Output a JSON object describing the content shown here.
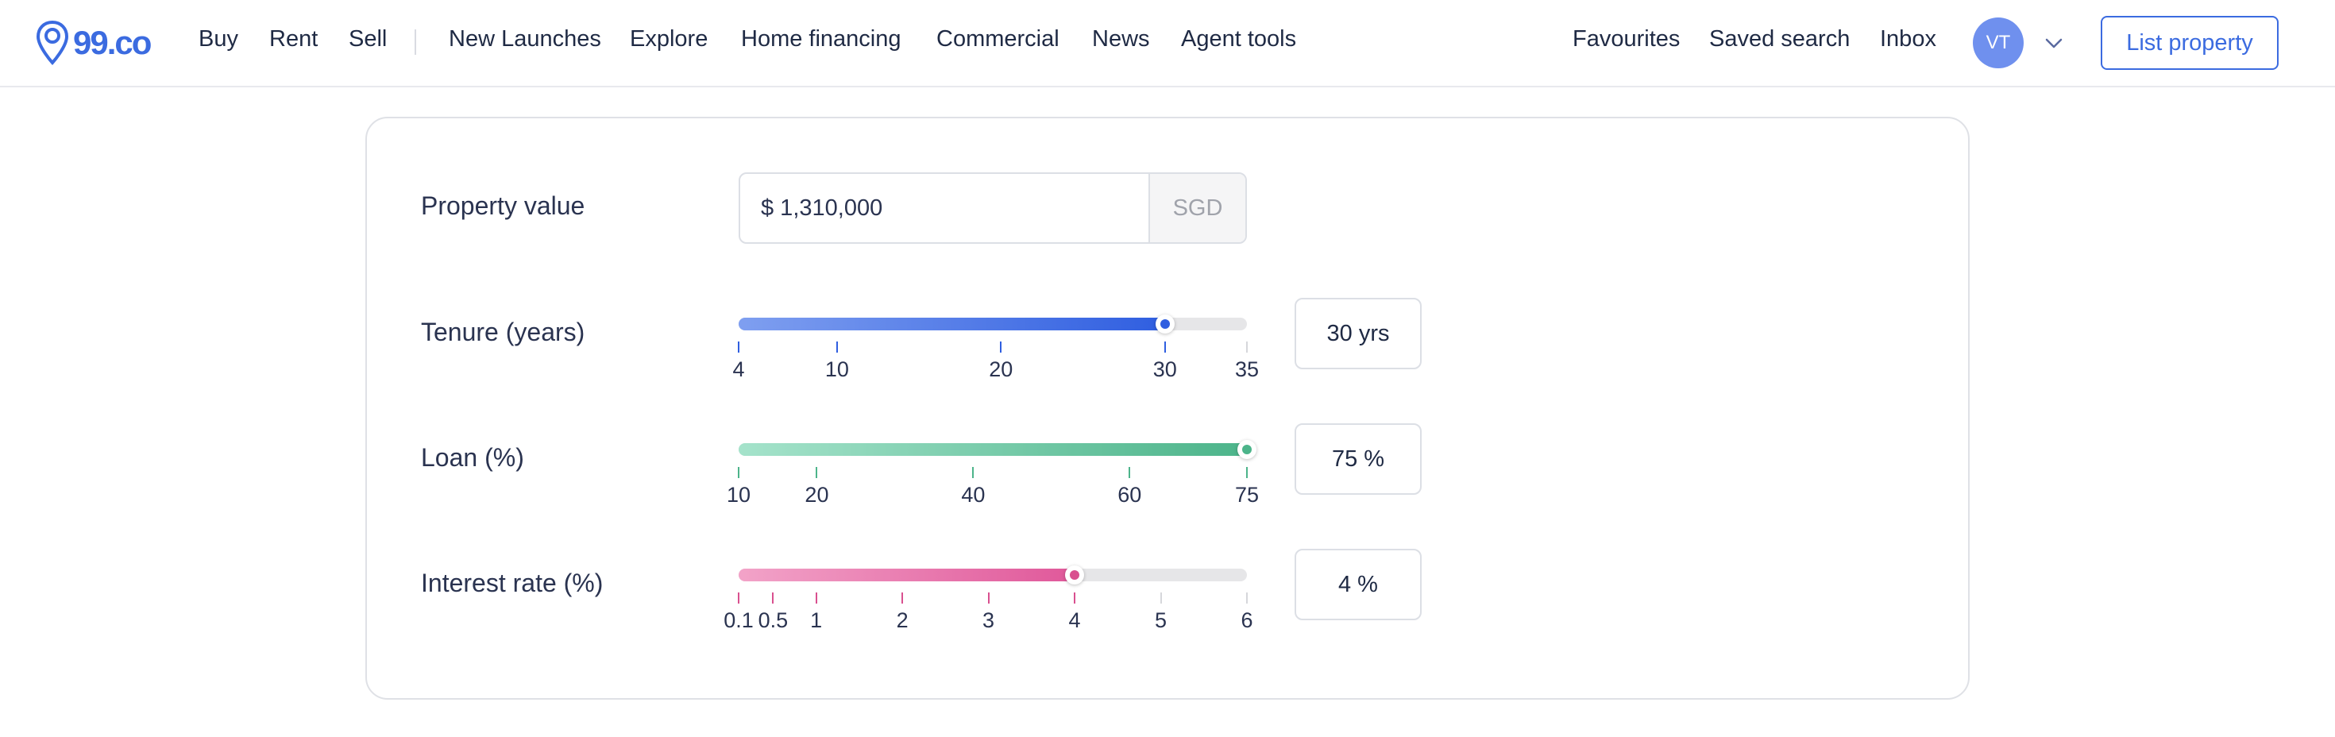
{
  "brand": {
    "name": "99.co",
    "accent": "#3b6be0"
  },
  "nav": {
    "primary": [
      {
        "label": "Buy"
      },
      {
        "label": "Rent"
      },
      {
        "label": "Sell"
      }
    ],
    "secondary": [
      {
        "label": "New Launches"
      },
      {
        "label": "Explore"
      },
      {
        "label": "Home financing"
      },
      {
        "label": "Commercial"
      },
      {
        "label": "News"
      },
      {
        "label": "Agent tools"
      }
    ],
    "right": [
      {
        "label": "Favourites"
      },
      {
        "label": "Saved search"
      },
      {
        "label": "Inbox"
      }
    ],
    "avatar_initials": "VT",
    "list_property_label": "List property"
  },
  "calculator": {
    "property_value": {
      "label": "Property value",
      "value": "$ 1,310,000",
      "unit": "SGD"
    },
    "sliders": [
      {
        "key": "tenure",
        "label": "Tenure (years)",
        "min": 4,
        "max": 35,
        "value": 30,
        "display": "30 yrs",
        "ticks": [
          "4",
          "10",
          "20",
          "30",
          "35"
        ],
        "color_start": "#7f9ff0",
        "color_end": "#2f5ee0",
        "dot": "#2f5ee0",
        "tick_color": "#2f5ee0"
      },
      {
        "key": "loan",
        "label": "Loan (%)",
        "min": 10,
        "max": 75,
        "value": 75,
        "display": "75 %",
        "ticks": [
          "10",
          "20",
          "40",
          "60",
          "75"
        ],
        "color_start": "#a5e3cb",
        "color_end": "#4cb48a",
        "dot": "#4cb48a",
        "tick_color": "#4cb48a"
      },
      {
        "key": "interest",
        "label": "Interest rate (%)",
        "min": 0.1,
        "max": 6,
        "value": 4,
        "display": "4 %",
        "ticks": [
          "0.1",
          "0.5",
          "1",
          "2",
          "3",
          "4",
          "5",
          "6"
        ],
        "color_start": "#f2a3c8",
        "color_end": "#e0589a",
        "dot": "#d9508f",
        "tick_color": "#d9508f"
      }
    ]
  }
}
